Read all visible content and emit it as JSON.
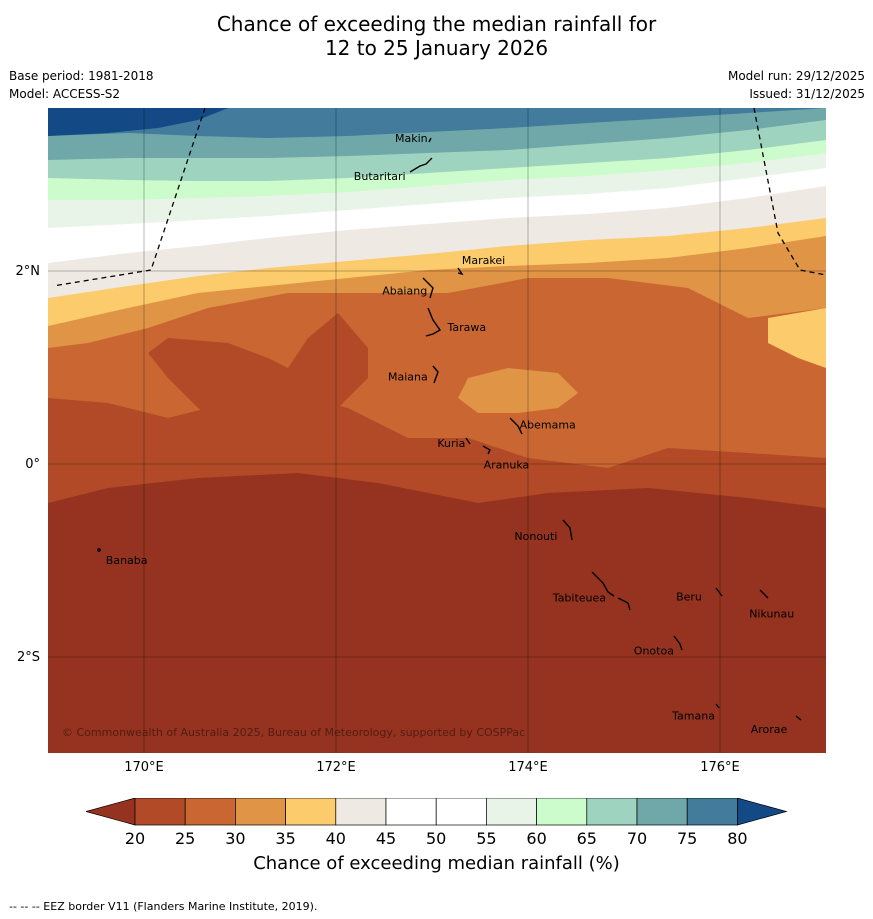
{
  "title": {
    "line1": "Chance of exceeding the median rainfall for",
    "line2": "12 to 25 January 2026"
  },
  "meta": {
    "base_period": "Base period: 1981-2018",
    "model": "Model: ACCESS-S2",
    "model_run": "Model run: 29/12/2025",
    "issued": "Issued: 31/12/2025"
  },
  "map": {
    "lat_labels": [
      "2°N",
      "0°",
      "2°S"
    ],
    "lon_labels": [
      "170°E",
      "172°E",
      "174°E",
      "176°E"
    ],
    "copyright": "© Commonwealth of Australia 2025, Bureau of Meteorology, supported by COSPPac",
    "places": [
      {
        "name": "Makin",
        "lon": 172.99,
        "lat": 3.38
      },
      {
        "name": "Butaritari",
        "lon": 172.79,
        "lat": 3.07
      },
      {
        "name": "Marakei",
        "lon": 173.27,
        "lat": 2.01
      },
      {
        "name": "Abaiang",
        "lon": 172.96,
        "lat": 1.84
      },
      {
        "name": "Tarawa",
        "lon": 173.13,
        "lat": 1.42
      },
      {
        "name": "Maiana",
        "lon": 173.0,
        "lat": 0.95
      },
      {
        "name": "Abemama",
        "lon": 173.85,
        "lat": 0.4
      },
      {
        "name": "Kuria",
        "lon": 173.41,
        "lat": 0.23
      },
      {
        "name": "Aranuka",
        "lon": 173.6,
        "lat": 0.16
      },
      {
        "name": "Nonouti",
        "lon": 174.4,
        "lat": -0.66
      },
      {
        "name": "Banaba",
        "lon": 169.54,
        "lat": -0.87
      },
      {
        "name": "Tabiteuea",
        "lon": 174.8,
        "lat": -1.28
      },
      {
        "name": "Beru",
        "lon": 175.98,
        "lat": -1.33
      },
      {
        "name": "Nikunau",
        "lon": 176.45,
        "lat": -1.38
      },
      {
        "name": "Onotoa",
        "lon": 175.56,
        "lat": -1.83
      },
      {
        "name": "Tamana",
        "lon": 175.98,
        "lat": -2.5
      },
      {
        "name": "Arorae",
        "lon": 176.82,
        "lat": -2.64
      }
    ]
  },
  "legend": {
    "title": "Chance of exceeding median rainfall (%)",
    "ticks": [
      "20",
      "25",
      "30",
      "35",
      "40",
      "45",
      "50",
      "55",
      "60",
      "65",
      "70",
      "75",
      "80"
    ],
    "colors": [
      "#953320",
      "#b34a27",
      "#c96632",
      "#e09446",
      "#fbcb6c",
      "#efe9e3",
      "#ffffff",
      "#ffffff",
      "#e8f4e8",
      "#ccfbcc",
      "#9ed3bf",
      "#70a7a8",
      "#427b9c",
      "#134a86"
    ]
  },
  "footer": "--  --  -- EEZ border V11 (Flanders Marine Institute, 2019)."
}
